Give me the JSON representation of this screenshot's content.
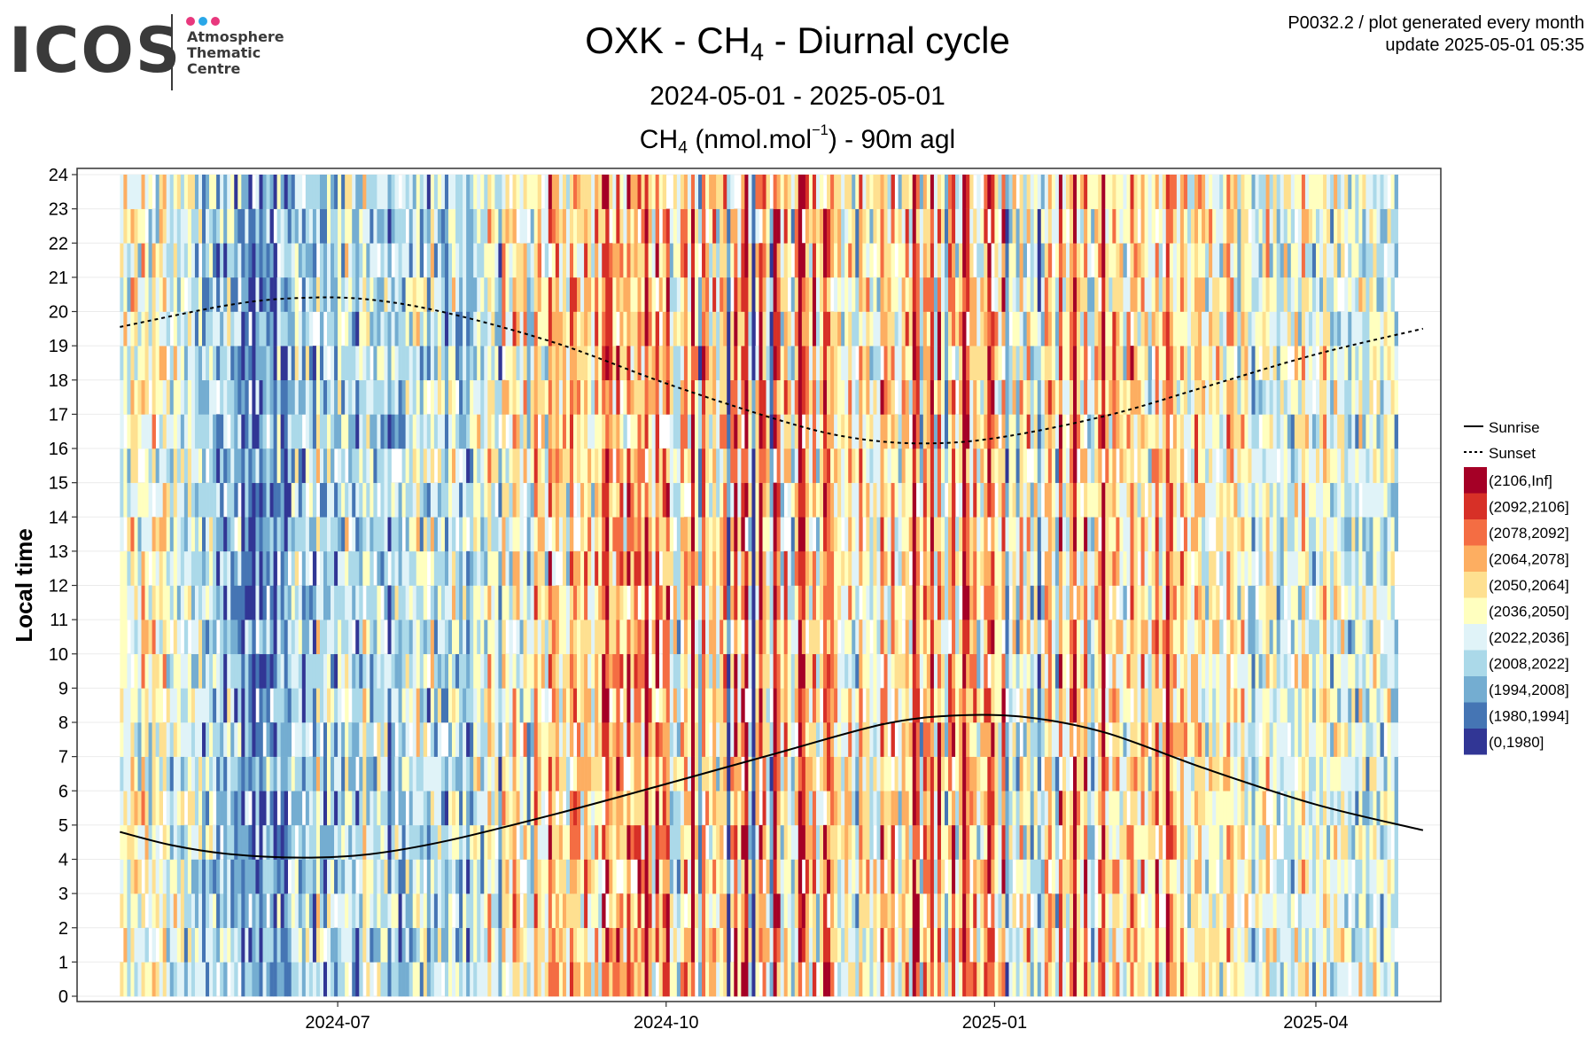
{
  "logo": {
    "wordmark": "ICOS",
    "line1": "Atmosphere",
    "line2": "Thematic",
    "line3": "Centre",
    "dot_colors": [
      "#e8387d",
      "#2aa7e8",
      "#e8387d"
    ]
  },
  "header": {
    "title_pre": "OXK - CH",
    "title_sub": "4",
    "title_post": " - Diurnal cycle",
    "date_range": "2024-05-01 - 2025-05-01",
    "var_pre": "CH",
    "var_sub": "4",
    "var_mid": " (nmol.mol",
    "var_sup": "−1",
    "var_post": ") - 90m agl",
    "info_line1": "P0032.2 / plot generated every month",
    "info_line2": "update  2025-05-01 05:35"
  },
  "chart_data": {
    "type": "heatmap",
    "x_range": [
      "2024-05-01",
      "2025-05-01"
    ],
    "y_range": [
      0,
      24
    ],
    "ylabel": "Local time",
    "y_ticks": [
      "0",
      "1",
      "2",
      "3",
      "4",
      "5",
      "6",
      "7",
      "8",
      "9",
      "10",
      "11",
      "12",
      "13",
      "14",
      "15",
      "16",
      "17",
      "18",
      "19",
      "20",
      "21",
      "22",
      "23",
      "24"
    ],
    "x_ticks": [
      {
        "date": "2024-07-01",
        "label": "2024-07"
      },
      {
        "date": "2024-10-01",
        "label": "2024-10"
      },
      {
        "date": "2025-01-01",
        "label": "2025-01"
      },
      {
        "date": "2025-04-01",
        "label": "2025-04"
      }
    ],
    "grid": true,
    "legend_position": "right",
    "lines": [
      {
        "name": "Sunrise",
        "style": "solid",
        "points": [
          [
            "2024-05-01",
            4.8
          ],
          [
            "2024-05-16",
            4.4
          ],
          [
            "2024-06-01",
            4.15
          ],
          [
            "2024-06-21",
            4.05
          ],
          [
            "2024-07-10",
            4.15
          ],
          [
            "2024-08-01",
            4.55
          ],
          [
            "2024-09-01",
            5.35
          ],
          [
            "2024-10-01",
            6.2
          ],
          [
            "2024-11-01",
            7.1
          ],
          [
            "2024-12-01",
            7.95
          ],
          [
            "2024-12-21",
            8.2
          ],
          [
            "2025-01-10",
            8.15
          ],
          [
            "2025-02-01",
            7.7
          ],
          [
            "2025-03-01",
            6.65
          ],
          [
            "2025-04-01",
            5.6
          ],
          [
            "2025-05-01",
            4.85
          ]
        ]
      },
      {
        "name": "Sunset",
        "style": "dashed",
        "points": [
          [
            "2024-05-01",
            19.55
          ],
          [
            "2024-06-01",
            20.2
          ],
          [
            "2024-06-21",
            20.4
          ],
          [
            "2024-07-10",
            20.35
          ],
          [
            "2024-08-01",
            19.95
          ],
          [
            "2024-09-01",
            19.05
          ],
          [
            "2024-10-01",
            17.9
          ],
          [
            "2024-11-01",
            16.85
          ],
          [
            "2024-11-20",
            16.35
          ],
          [
            "2024-12-10",
            16.15
          ],
          [
            "2025-01-01",
            16.3
          ],
          [
            "2025-02-01",
            16.95
          ],
          [
            "2025-03-01",
            17.8
          ],
          [
            "2025-04-01",
            18.75
          ],
          [
            "2025-05-01",
            19.5
          ]
        ]
      }
    ],
    "bins": [
      {
        "label": "(2106,Inf]",
        "color": "#a50026"
      },
      {
        "label": "(2092,2106]",
        "color": "#d73027"
      },
      {
        "label": "(2078,2092]",
        "color": "#f46d43"
      },
      {
        "label": "(2064,2078]",
        "color": "#fdae61"
      },
      {
        "label": "(2050,2064]",
        "color": "#fee090"
      },
      {
        "label": "(2036,2050]",
        "color": "#ffffbf"
      },
      {
        "label": "(2022,2036]",
        "color": "#e0f3f8"
      },
      {
        "label": "(2008,2022]",
        "color": "#abd9e9"
      },
      {
        "label": "(1994,2008]",
        "color": "#74add1"
      },
      {
        "label": "(1980,1994]",
        "color": "#4575b4"
      },
      {
        "label": "(0,1980]",
        "color": "#313695"
      }
    ],
    "daily_mean_bins": [
      6,
      5,
      6,
      4,
      5,
      6,
      4,
      5,
      6,
      4,
      6,
      5,
      4,
      6,
      7,
      5,
      6,
      6,
      7,
      5,
      6,
      7,
      6,
      8,
      7,
      6,
      7,
      8,
      7,
      8,
      6,
      7,
      8,
      7,
      9,
      8,
      9,
      10,
      8,
      9,
      8,
      7,
      8,
      9,
      7,
      8,
      9,
      8,
      7,
      6,
      7,
      8,
      6,
      7,
      8,
      5,
      7,
      8,
      6,
      7,
      8,
      6,
      7,
      5,
      6,
      7,
      8,
      7,
      5,
      6,
      7,
      7,
      6,
      7,
      6,
      8,
      7,
      6,
      8,
      7,
      6,
      7,
      6,
      5,
      7,
      6,
      8,
      5,
      7,
      6,
      7,
      8,
      6,
      5,
      7,
      8,
      6,
      9,
      7,
      6,
      5,
      7,
      6,
      4,
      5,
      6,
      8,
      4,
      5,
      6,
      3,
      5,
      6,
      4,
      7,
      6,
      3,
      4,
      5,
      6,
      2,
      4,
      3,
      5,
      4,
      6,
      2,
      3,
      4,
      5,
      3,
      4,
      6,
      3,
      5,
      2,
      1,
      3,
      4,
      2,
      3,
      5,
      1,
      4,
      3,
      2,
      4,
      0,
      3,
      5,
      1,
      4,
      3,
      2,
      6,
      5,
      7,
      4,
      3,
      5,
      0,
      4,
      8,
      2,
      4,
      5,
      3,
      6,
      4,
      3,
      9,
      4,
      1,
      5,
      2,
      0,
      6,
      10,
      4,
      1,
      3,
      5,
      8,
      0,
      2,
      6,
      3,
      5,
      7,
      4,
      0,
      1,
      3,
      5,
      2,
      6,
      4,
      1,
      2,
      3,
      4,
      5,
      6,
      5,
      4,
      6,
      7,
      3,
      5,
      4,
      6,
      5,
      6,
      2,
      4,
      5,
      3,
      5,
      6,
      4,
      3,
      5,
      0,
      2,
      7,
      3,
      4,
      1,
      6,
      2,
      5,
      7,
      3,
      1,
      6,
      4,
      0,
      2,
      4,
      3,
      6,
      5,
      3,
      1,
      2,
      4,
      5,
      2,
      8,
      6,
      5,
      7,
      4,
      6,
      3,
      7,
      5,
      8,
      6,
      4,
      3,
      5,
      7,
      1,
      5,
      6,
      3,
      0,
      4,
      5,
      2,
      6,
      7,
      4,
      3,
      0,
      4,
      5,
      3,
      4,
      5,
      6,
      4,
      2,
      4,
      5,
      3,
      5,
      6,
      4,
      2,
      5,
      4,
      1,
      3,
      4,
      5,
      3,
      4,
      6,
      5,
      3,
      4,
      5,
      6,
      4,
      5,
      4,
      6,
      5,
      3,
      4,
      5,
      6,
      4,
      5,
      6,
      7,
      5,
      6,
      5,
      4,
      6,
      5,
      7,
      6,
      5,
      6,
      7,
      5,
      6,
      4,
      5,
      6,
      7,
      5,
      6,
      4,
      6,
      7,
      5,
      6,
      5,
      6,
      7,
      6,
      7,
      5,
      6,
      7,
      6,
      5,
      6,
      7,
      6,
      5,
      6,
      7
    ]
  },
  "legend": {
    "sunrise_label": "Sunrise",
    "sunset_label": "Sunset"
  }
}
